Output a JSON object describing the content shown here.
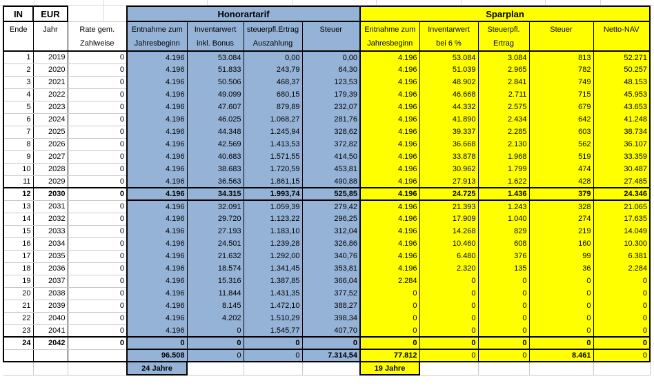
{
  "header": {
    "in": "IN",
    "eur": "EUR"
  },
  "sections": {
    "honorartarif": "Honorartarif",
    "sparplan": "Sparplan"
  },
  "colors": {
    "honorartarif_blue": "#95B3D7",
    "sparplan_yellow": "#FFFF00"
  },
  "columns": {
    "ende": [
      "Ende",
      ""
    ],
    "jahr": [
      "Jahr",
      ""
    ],
    "rate": [
      "Rate gem.",
      "Zahlweise"
    ],
    "blue": [
      [
        "Entnahme zum",
        "Jahresbeginn"
      ],
      [
        "Inventarwert",
        "inkl. Bonus"
      ],
      [
        "steuerpfl.Ertrag",
        "Auszahlung"
      ],
      [
        "Steuer",
        ""
      ]
    ],
    "yellow": [
      [
        "Entnahme zum",
        "Jahresbeginn"
      ],
      [
        "Inventarwert",
        "bei 6 %"
      ],
      [
        "Steuerpfl.",
        "Ertrag"
      ],
      [
        "Steuer",
        ""
      ],
      [
        "Netto-NAV",
        ""
      ]
    ]
  },
  "rows": [
    {
      "ende": "1",
      "jahr": "2019",
      "rate": "0",
      "h": [
        "4.196",
        "53.084",
        "0,00",
        "0,00"
      ],
      "s": [
        "4.196",
        "53.084",
        "3.084",
        "813",
        "52.271"
      ],
      "bold": false
    },
    {
      "ende": "2",
      "jahr": "2020",
      "rate": "0",
      "h": [
        "4.196",
        "51.833",
        "243,79",
        "64,30"
      ],
      "s": [
        "4.196",
        "51.039",
        "2.965",
        "782",
        "50.257"
      ],
      "bold": false
    },
    {
      "ende": "3",
      "jahr": "2021",
      "rate": "0",
      "h": [
        "4.196",
        "50.506",
        "468,37",
        "123,53"
      ],
      "s": [
        "4.196",
        "48.902",
        "2.841",
        "749",
        "48.153"
      ],
      "bold": false
    },
    {
      "ende": "4",
      "jahr": "2022",
      "rate": "0",
      "h": [
        "4.196",
        "49.099",
        "680,15",
        "179,39"
      ],
      "s": [
        "4.196",
        "46.668",
        "2.711",
        "715",
        "45.953"
      ],
      "bold": false
    },
    {
      "ende": "5",
      "jahr": "2023",
      "rate": "0",
      "h": [
        "4.196",
        "47.607",
        "879,89",
        "232,07"
      ],
      "s": [
        "4.196",
        "44.332",
        "2.575",
        "679",
        "43.653"
      ],
      "bold": false
    },
    {
      "ende": "6",
      "jahr": "2024",
      "rate": "0",
      "h": [
        "4.196",
        "46.025",
        "1.068,27",
        "281,76"
      ],
      "s": [
        "4.196",
        "41.890",
        "2.434",
        "642",
        "41.248"
      ],
      "bold": false
    },
    {
      "ende": "7",
      "jahr": "2025",
      "rate": "0",
      "h": [
        "4.196",
        "44.348",
        "1.245,94",
        "328,62"
      ],
      "s": [
        "4.196",
        "39.337",
        "2.285",
        "603",
        "38.734"
      ],
      "bold": false
    },
    {
      "ende": "8",
      "jahr": "2026",
      "rate": "0",
      "h": [
        "4.196",
        "42.569",
        "1.413,53",
        "372,82"
      ],
      "s": [
        "4.196",
        "36.668",
        "2.130",
        "562",
        "36.107"
      ],
      "bold": false
    },
    {
      "ende": "9",
      "jahr": "2027",
      "rate": "0",
      "h": [
        "4.196",
        "40.683",
        "1.571,55",
        "414,50"
      ],
      "s": [
        "4.196",
        "33.878",
        "1.968",
        "519",
        "33.359"
      ],
      "bold": false
    },
    {
      "ende": "10",
      "jahr": "2028",
      "rate": "0",
      "h": [
        "4.196",
        "38.683",
        "1.720,59",
        "453,81"
      ],
      "s": [
        "4.196",
        "30.962",
        "1.799",
        "474",
        "30.487"
      ],
      "bold": false
    },
    {
      "ende": "11",
      "jahr": "2029",
      "rate": "0",
      "h": [
        "4.196",
        "36.563",
        "1.861,15",
        "490,88"
      ],
      "s": [
        "4.196",
        "27.913",
        "1.622",
        "428",
        "27.485"
      ],
      "bold": false
    },
    {
      "ende": "12",
      "jahr": "2030",
      "rate": "0",
      "h": [
        "4.196",
        "34.315",
        "1.993,74",
        "525,85"
      ],
      "s": [
        "4.196",
        "24.725",
        "1.436",
        "379",
        "24.346"
      ],
      "bold": true
    },
    {
      "ende": "13",
      "jahr": "2031",
      "rate": "0",
      "h": [
        "4.196",
        "32.091",
        "1.059,39",
        "279,42"
      ],
      "s": [
        "4.196",
        "21.393",
        "1.243",
        "328",
        "21.065"
      ],
      "bold": false
    },
    {
      "ende": "14",
      "jahr": "2032",
      "rate": "0",
      "h": [
        "4.196",
        "29.720",
        "1.123,22",
        "296,25"
      ],
      "s": [
        "4.196",
        "17.909",
        "1.040",
        "274",
        "17.635"
      ],
      "bold": false
    },
    {
      "ende": "15",
      "jahr": "2033",
      "rate": "0",
      "h": [
        "4.196",
        "27.193",
        "1.183,10",
        "312,04"
      ],
      "s": [
        "4.196",
        "14.268",
        "829",
        "219",
        "14.049"
      ],
      "bold": false
    },
    {
      "ende": "16",
      "jahr": "2034",
      "rate": "0",
      "h": [
        "4.196",
        "24.501",
        "1.239,28",
        "326,86"
      ],
      "s": [
        "4.196",
        "10.460",
        "608",
        "160",
        "10.300"
      ],
      "bold": false
    },
    {
      "ende": "17",
      "jahr": "2035",
      "rate": "0",
      "h": [
        "4.196",
        "21.632",
        "1.292,00",
        "340,76"
      ],
      "s": [
        "4.196",
        "6.480",
        "376",
        "99",
        "6.381"
      ],
      "bold": false
    },
    {
      "ende": "18",
      "jahr": "2036",
      "rate": "0",
      "h": [
        "4.196",
        "18.574",
        "1.341,45",
        "353,81"
      ],
      "s": [
        "4.196",
        "2.320",
        "135",
        "36",
        "2.284"
      ],
      "bold": false
    },
    {
      "ende": "19",
      "jahr": "2037",
      "rate": "0",
      "h": [
        "4.196",
        "15.316",
        "1.387,85",
        "366,04"
      ],
      "s": [
        "2.284",
        "0",
        "0",
        "0",
        "0"
      ],
      "bold": false
    },
    {
      "ende": "20",
      "jahr": "2038",
      "rate": "0",
      "h": [
        "4.196",
        "11.844",
        "1.431,35",
        "377,52"
      ],
      "s": [
        "0",
        "0",
        "0",
        "0",
        "0"
      ],
      "bold": false
    },
    {
      "ende": "21",
      "jahr": "2039",
      "rate": "0",
      "h": [
        "4.196",
        "8.145",
        "1.472,10",
        "388,27"
      ],
      "s": [
        "0",
        "0",
        "0",
        "0",
        "0"
      ],
      "bold": false
    },
    {
      "ende": "22",
      "jahr": "2040",
      "rate": "0",
      "h": [
        "4.196",
        "4.202",
        "1.510,29",
        "398,34"
      ],
      "s": [
        "0",
        "0",
        "0",
        "0",
        "0"
      ],
      "bold": false
    },
    {
      "ende": "23",
      "jahr": "2041",
      "rate": "0",
      "h": [
        "4.196",
        "0",
        "1.545,77",
        "407,70"
      ],
      "s": [
        "0",
        "0",
        "0",
        "0",
        "0"
      ],
      "bold": false
    },
    {
      "ende": "24",
      "jahr": "2042",
      "rate": "0",
      "h": [
        "0",
        "0",
        "0",
        "0"
      ],
      "s": [
        "0",
        "0",
        "0",
        "0",
        "0"
      ],
      "bold": true
    }
  ],
  "totals": {
    "h": [
      "96.508",
      "0",
      "0",
      "7.314,54"
    ],
    "s": [
      "77.812",
      "0",
      "0",
      "8.461",
      "0"
    ]
  },
  "footer": {
    "honorartarif_years": "24 Jahre",
    "sparplan_years": "19 Jahre"
  }
}
